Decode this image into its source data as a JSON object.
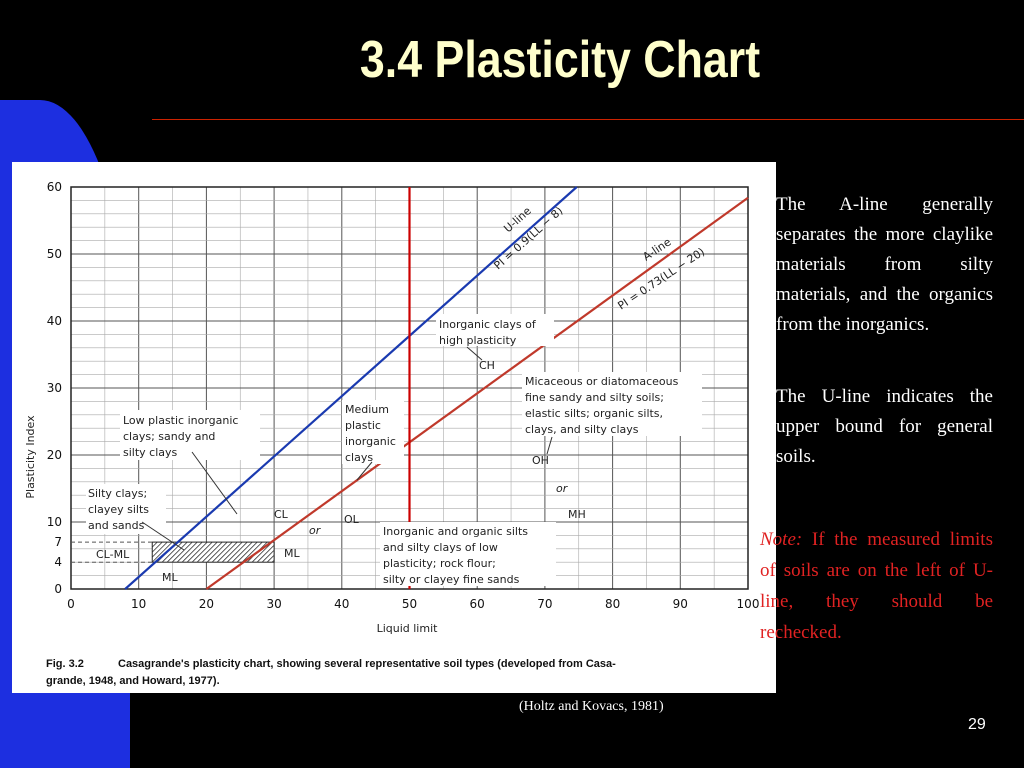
{
  "slide": {
    "title": "3.4 Plasticity Chart",
    "page_number": "29",
    "citation": "(Holtz and Kovacs, 1981)",
    "colors": {
      "background": "#000000",
      "title": "#ffffcc",
      "rule": "#cc2200",
      "note": "#e02222",
      "accent_blue": "#1d2fe0"
    }
  },
  "text": {
    "a_line_paragraph": "The A-line generally separates the more claylike materials from silty materials, and the organics from the inorganics.",
    "u_line_paragraph": "The U-line indicates the upper bound for general soils.",
    "note_label": "Note:",
    "note_body": "If the measured limits of soils are on the left of U-line, they should be rechecked."
  },
  "figure": {
    "caption_fig": "Fig. 3.2",
    "caption_line1": "Casagrande's plasticity chart, showing several representative soil types (developed from Casa-",
    "caption_line2": "grande, 1948, and Howard, 1977).",
    "zone_labels": {
      "cl_ml": "CL-ML",
      "ml_bottom": "ML",
      "cl": "CL",
      "or1": "or",
      "ol": "OL",
      "ml": "ML",
      "ch": "CH",
      "oh": "OH",
      "or2": "or",
      "mh": "MH"
    },
    "annotations": {
      "low_plastic": [
        "Low plastic inorganic",
        "clays; sandy and",
        "silty clays"
      ],
      "silty_clays": [
        "Silty clays;",
        "clayey silts",
        "and sands"
      ],
      "medium_plastic": [
        "Medium",
        "plastic",
        "inorganic",
        "clays"
      ],
      "inorganic_high": [
        "Inorganic clays of",
        "high plasticity"
      ],
      "micaceous": [
        "Micaceous or diatomaceous",
        "fine sandy and silty soils;",
        "elastic silts; organic silts,",
        "clays, and silty clays"
      ],
      "inorganic_low": [
        "Inorganic and organic silts",
        "and silty clays of low",
        "plasticity; rock flour;",
        "silty or clayey fine sands"
      ]
    }
  },
  "chart_data": {
    "type": "line",
    "title": "",
    "xlabel": "Liquid limit",
    "ylabel": "Plasticity Index",
    "xlim": [
      0,
      100
    ],
    "ylim": [
      0,
      60
    ],
    "x_ticks": [
      0,
      10,
      20,
      30,
      40,
      50,
      60,
      70,
      80,
      90,
      100
    ],
    "y_ticks": [
      0,
      4,
      7,
      10,
      20,
      30,
      40,
      50,
      60
    ],
    "grid": true,
    "series": [
      {
        "name": "U-line",
        "equation": "PI = 0.9(LL − 8)",
        "color": "#1a3ab0",
        "x": [
          8,
          74.7
        ],
        "y": [
          0,
          60
        ]
      },
      {
        "name": "A-line",
        "equation": "PI = 0.73(LL − 20)",
        "color": "#c0392b",
        "x": [
          20,
          100
        ],
        "y": [
          0,
          58.4
        ]
      },
      {
        "name": "LL = 50",
        "color": "#cc0000",
        "x": [
          50,
          50
        ],
        "y": [
          0,
          60
        ]
      }
    ],
    "hatched_zone": {
      "label": "CL-ML",
      "ll_range": [
        12,
        30
      ],
      "pi_range": [
        4,
        7
      ]
    }
  }
}
